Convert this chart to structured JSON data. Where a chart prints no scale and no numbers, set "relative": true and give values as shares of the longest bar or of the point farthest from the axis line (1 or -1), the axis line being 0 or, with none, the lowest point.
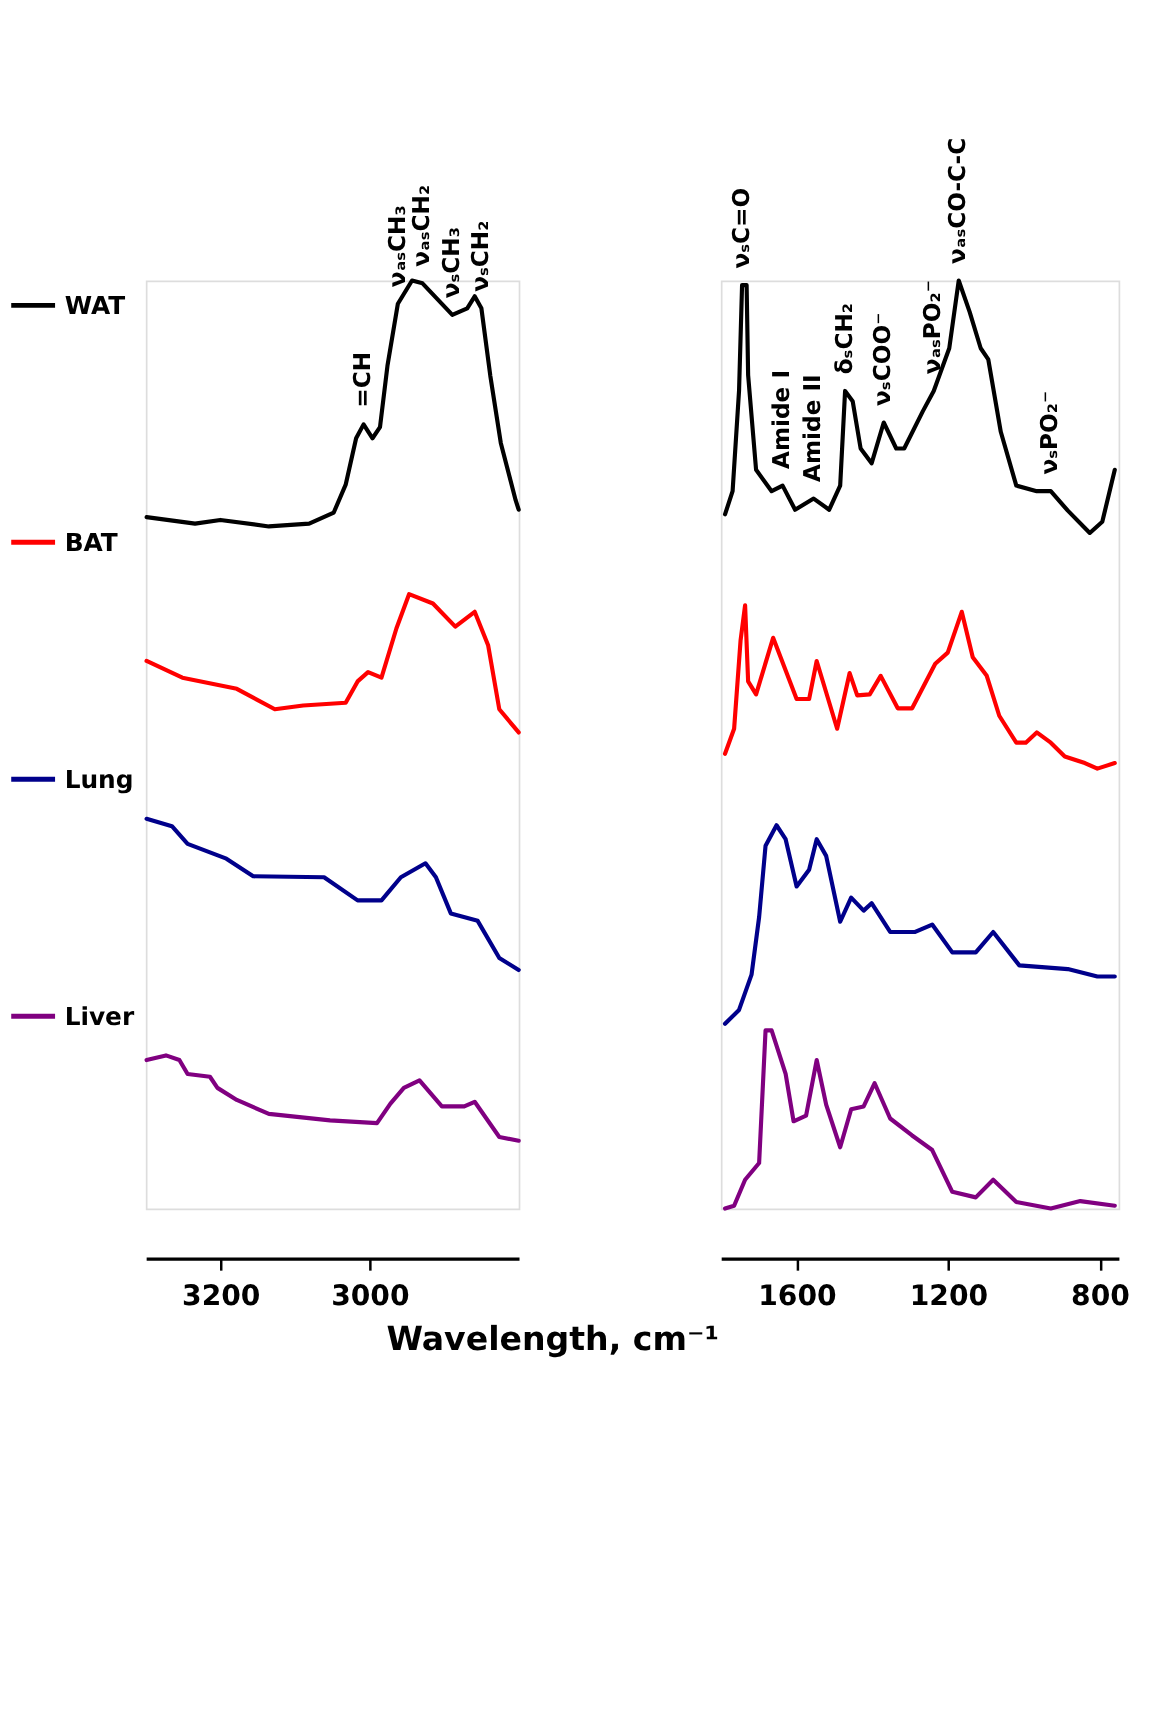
{
  "chart_data": [
    {
      "type": "line",
      "relative": true,
      "xlim": [
        3300,
        2800
      ],
      "xticks": [
        3200,
        3000
      ],
      "xlabel": "Wavelength, cm⁻¹",
      "legend": "left",
      "grid": false,
      "series": [
        {
          "name": "WAT",
          "color": "#000000",
          "x": [
            3299,
            3234,
            3200,
            3135,
            3081,
            3048,
            3032,
            3018,
            3008,
            2996,
            2986,
            2976,
            2962,
            2943,
            2929,
            2889,
            2869,
            2859,
            2850,
            2838,
            2824,
            2804,
            2800
          ],
          "values": [
            0.745,
            0.738,
            0.742,
            0.735,
            0.738,
            0.75,
            0.78,
            0.83,
            0.845,
            0.83,
            0.842,
            0.908,
            0.975,
            1.0,
            0.997,
            0.963,
            0.97,
            0.983,
            0.97,
            0.897,
            0.825,
            0.763,
            0.753
          ]
        },
        {
          "name": "BAT",
          "color": "#ff0000",
          "x": [
            3299,
            3251,
            3178,
            3127,
            3089,
            3032,
            3016,
            3002,
            2984,
            2964,
            2947,
            2915,
            2885,
            2859,
            2841,
            2826,
            2800
          ],
          "values": [
            0.59,
            0.572,
            0.56,
            0.538,
            0.542,
            0.545,
            0.568,
            0.578,
            0.572,
            0.625,
            0.662,
            0.652,
            0.627,
            0.643,
            0.607,
            0.538,
            0.513
          ]
        },
        {
          "name": "Lung",
          "color": "#00008b",
          "x": [
            3299,
            3265,
            3244,
            3192,
            3156,
            3061,
            3016,
            2984,
            2958,
            2925,
            2911,
            2891,
            2855,
            2826,
            2800
          ],
          "values": [
            0.42,
            0.412,
            0.393,
            0.377,
            0.358,
            0.357,
            0.332,
            0.332,
            0.357,
            0.372,
            0.357,
            0.318,
            0.31,
            0.27,
            0.257
          ]
        },
        {
          "name": "Liver",
          "color": "#800080",
          "x": [
            3299,
            3273,
            3255,
            3244,
            3214,
            3204,
            3178,
            3135,
            3053,
            2990,
            2972,
            2954,
            2933,
            2903,
            2873,
            2859,
            2826,
            2800
          ],
          "values": [
            0.16,
            0.165,
            0.16,
            0.145,
            0.142,
            0.13,
            0.117,
            0.102,
            0.095,
            0.092,
            0.113,
            0.13,
            0.138,
            0.11,
            0.11,
            0.115,
            0.077,
            0.073
          ]
        }
      ],
      "annotations": [
        {
          "text": "=CH",
          "x": 3008,
          "y": 0.845
        },
        {
          "text": "νₐₛCH₃",
          "x": 2962,
          "y": 0.975
        },
        {
          "text": "νₐₛCH₂",
          "x": 2929,
          "y": 0.997
        },
        {
          "text": "νₛCH₃",
          "x": 2889,
          "y": 0.963
        },
        {
          "text": "νₛCH₂",
          "x": 2850,
          "y": 0.97
        }
      ]
    },
    {
      "type": "line",
      "relative": true,
      "xlim": [
        1800,
        750
      ],
      "xticks": [
        1600,
        1200,
        800
      ],
      "grid": false,
      "series": [
        {
          "name": "WAT",
          "color": "#000000",
          "x": [
            1789,
            1769,
            1752,
            1744,
            1732,
            1728,
            1707,
            1666,
            1637,
            1604,
            1555,
            1514,
            1485,
            1472,
            1452,
            1431,
            1402,
            1370,
            1337,
            1316,
            1267,
            1238,
            1197,
            1172,
            1143,
            1114,
            1094,
            1061,
            1020,
            966,
            929,
            884,
            826,
            793,
            760
          ],
          "values": [
            0.748,
            0.773,
            0.881,
            0.995,
            0.995,
            0.898,
            0.796,
            0.773,
            0.779,
            0.753,
            0.765,
            0.753,
            0.779,
            0.881,
            0.87,
            0.819,
            0.803,
            0.847,
            0.819,
            0.819,
            0.859,
            0.881,
            0.927,
            1.0,
            0.966,
            0.927,
            0.915,
            0.837,
            0.779,
            0.773,
            0.773,
            0.752,
            0.728,
            0.74,
            0.796
          ]
        },
        {
          "name": "BAT",
          "color": "#ff0000",
          "x": [
            1789,
            1765,
            1748,
            1736,
            1728,
            1707,
            1662,
            1600,
            1567,
            1547,
            1493,
            1460,
            1440,
            1407,
            1378,
            1333,
            1295,
            1234,
            1201,
            1164,
            1135,
            1098,
            1065,
            1020,
            995,
            966,
            929,
            892,
            839,
            806,
            760
          ],
          "values": [
            0.49,
            0.517,
            0.612,
            0.65,
            0.568,
            0.554,
            0.615,
            0.549,
            0.549,
            0.59,
            0.517,
            0.577,
            0.553,
            0.554,
            0.574,
            0.539,
            0.539,
            0.587,
            0.599,
            0.643,
            0.594,
            0.574,
            0.531,
            0.502,
            0.502,
            0.513,
            0.502,
            0.487,
            0.48,
            0.474,
            0.48
          ]
        },
        {
          "name": "Lung",
          "color": "#00008b",
          "x": [
            1789,
            1752,
            1719,
            1699,
            1682,
            1653,
            1629,
            1600,
            1567,
            1547,
            1522,
            1485,
            1456,
            1423,
            1402,
            1353,
            1287,
            1242,
            1189,
            1127,
            1081,
            1012,
            884,
            806,
            760
          ],
          "values": [
            0.199,
            0.214,
            0.252,
            0.314,
            0.391,
            0.413,
            0.398,
            0.347,
            0.365,
            0.398,
            0.38,
            0.309,
            0.335,
            0.321,
            0.329,
            0.298,
            0.298,
            0.306,
            0.276,
            0.276,
            0.298,
            0.262,
            0.258,
            0.25,
            0.25
          ]
        },
        {
          "name": "Liver",
          "color": "#800080",
          "x": [
            1789,
            1765,
            1736,
            1699,
            1682,
            1666,
            1629,
            1608,
            1575,
            1547,
            1522,
            1485,
            1456,
            1423,
            1394,
            1353,
            1296,
            1242,
            1189,
            1127,
            1081,
            1020,
            929,
            851,
            760
          ],
          "values": [
            0.0,
            0.003,
            0.031,
            0.049,
            0.192,
            0.192,
            0.145,
            0.094,
            0.1,
            0.16,
            0.112,
            0.066,
            0.107,
            0.11,
            0.135,
            0.097,
            0.079,
            0.063,
            0.018,
            0.012,
            0.031,
            0.007,
            0.0,
            0.008,
            0.003
          ]
        }
      ],
      "annotations": [
        {
          "text": "νₛC=O",
          "x": 1744,
          "y": 0.995
        },
        {
          "text": "Amide I",
          "x": 1637,
          "y": 0.779
        },
        {
          "text": "Amide II",
          "x": 1555,
          "y": 0.765
        },
        {
          "text": "δₛCH₂",
          "x": 1472,
          "y": 0.881
        },
        {
          "text": "νₛCOO⁻",
          "x": 1370,
          "y": 0.847
        },
        {
          "text": "νₐₛPO₂⁻",
          "x": 1238,
          "y": 0.881
        },
        {
          "text": "νₐₛCO-C-C",
          "x": 1172,
          "y": 1.0
        },
        {
          "text": "νₛPO₂⁻",
          "x": 929,
          "y": 0.773
        }
      ]
    }
  ]
}
